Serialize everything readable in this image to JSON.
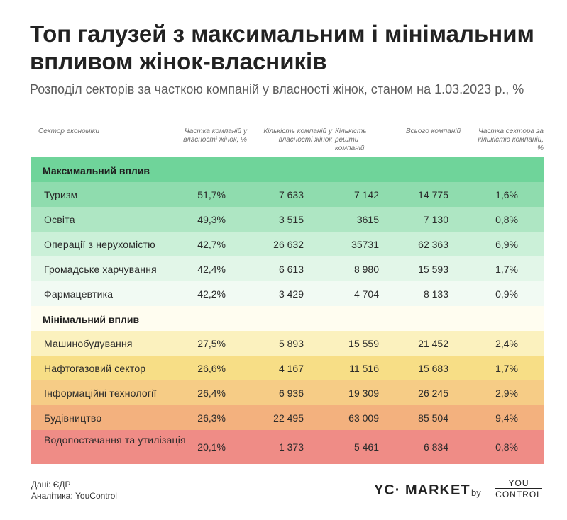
{
  "title": "Топ галузей з максимальним і мінімальним впливом жінок-власників",
  "subtitle": "Розподіл секторів за часткою компаній у власності жінок, станом на 1.03.2023 р., %",
  "chart_data": {
    "type": "table",
    "columns": [
      "Сектор економіки",
      "Частка компаній у власності жінок, %",
      "Кількість компаній у власності жінок",
      "Кількість решти компаній",
      "Всього компаній",
      "Частка сектора за кількістю компаній, %"
    ],
    "sections": [
      {
        "name": "Максимальний вплив",
        "color": "#6fd49a",
        "rows": [
          {
            "sector": "Туризм",
            "share_women": "51,7%",
            "women_companies": "7 633",
            "other_companies": "7 142",
            "total": "14 775",
            "sector_share": "1,6%",
            "color": "#8fdcae"
          },
          {
            "sector": "Освіта",
            "share_women": "49,3%",
            "women_companies": "3 515",
            "other_companies": "3615",
            "total": "7 130",
            "sector_share": "0,8%",
            "color": "#aee6c3"
          },
          {
            "sector": "Операції з нерухомістю",
            "share_women": "42,7%",
            "women_companies": "26 632",
            "other_companies": "35731",
            "total": "62 363",
            "sector_share": "6,9%",
            "color": "#cbf0d8"
          },
          {
            "sector": "Громадське харчування",
            "share_women": "42,4%",
            "women_companies": "6 613",
            "other_companies": "8 980",
            "total": "15 593",
            "sector_share": "1,7%",
            "color": "#e2f6e8"
          },
          {
            "sector": "Фармацевтика",
            "share_women": "42,2%",
            "women_companies": "3 429",
            "other_companies": "4 704",
            "total": "8 133",
            "sector_share": "0,9%",
            "color": "#f1faf3"
          }
        ]
      },
      {
        "name": "Мінімальний вплив",
        "color": "#fffdf0",
        "rows": [
          {
            "sector": "Машинобудування",
            "share_women": "27,5%",
            "women_companies": "5 893",
            "other_companies": "15 559",
            "total": "21 452",
            "sector_share": "2,4%",
            "color": "#fbf1be"
          },
          {
            "sector": "Нафтогазовий сектор",
            "share_women": "26,6%",
            "women_companies": "4 167",
            "other_companies": "11 516",
            "total": "15 683",
            "sector_share": "1,7%",
            "color": "#f7de86"
          },
          {
            "sector": "Інформаційні технології",
            "share_women": "26,4%",
            "women_companies": "6 936",
            "other_companies": "19 309",
            "total": "26 245",
            "sector_share": "2,9%",
            "color": "#f6cc86"
          },
          {
            "sector": "Будівництво",
            "share_women": "26,3%",
            "women_companies": "22 495",
            "other_companies": "63 009",
            "total": "85 504",
            "sector_share": "9,4%",
            "color": "#f3b17e"
          },
          {
            "sector": "Водопостачання та утилізація",
            "share_women": "20,1%",
            "women_companies": "1 373",
            "other_companies": "5 461",
            "total": "6 834",
            "sector_share": "0,8%",
            "color": "#ef8c86"
          }
        ]
      }
    ]
  },
  "footer": {
    "source": "Дані: ЄДР",
    "analytics": "Аналітика: YouControl",
    "brand": "YC· MARKET",
    "by": "by",
    "logo_line1": "YOU",
    "logo_line2": "CONTROL"
  }
}
